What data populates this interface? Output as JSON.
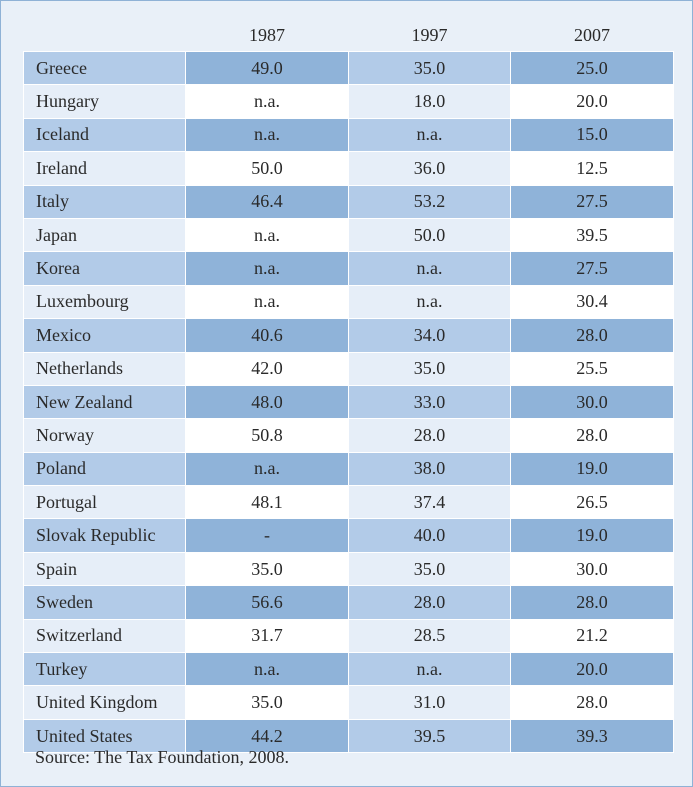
{
  "table": {
    "headers": [
      "",
      "1987",
      "1997",
      "2007"
    ],
    "rows": [
      {
        "country": "Greece",
        "y1987": "49.0",
        "y1997": "35.0",
        "y2007": "25.0"
      },
      {
        "country": "Hungary",
        "y1987": "n.a.",
        "y1997": "18.0",
        "y2007": "20.0"
      },
      {
        "country": "Iceland",
        "y1987": "n.a.",
        "y1997": "n.a.",
        "y2007": "15.0"
      },
      {
        "country": "Ireland",
        "y1987": "50.0",
        "y1997": "36.0",
        "y2007": "12.5"
      },
      {
        "country": "Italy",
        "y1987": "46.4",
        "y1997": "53.2",
        "y2007": "27.5"
      },
      {
        "country": "Japan",
        "y1987": "n.a.",
        "y1997": "50.0",
        "y2007": "39.5"
      },
      {
        "country": "Korea",
        "y1987": "n.a.",
        "y1997": "n.a.",
        "y2007": "27.5"
      },
      {
        "country": "Luxembourg",
        "y1987": "n.a.",
        "y1997": "n.a.",
        "y2007": "30.4"
      },
      {
        "country": "Mexico",
        "y1987": "40.6",
        "y1997": "34.0",
        "y2007": "28.0"
      },
      {
        "country": "Netherlands",
        "y1987": "42.0",
        "y1997": "35.0",
        "y2007": "25.5"
      },
      {
        "country": "New Zealand",
        "y1987": "48.0",
        "y1997": "33.0",
        "y2007": "30.0"
      },
      {
        "country": "Norway",
        "y1987": "50.8",
        "y1997": "28.0",
        "y2007": "28.0"
      },
      {
        "country": "Poland",
        "y1987": "n.a.",
        "y1997": "38.0",
        "y2007": "19.0"
      },
      {
        "country": "Portugal",
        "y1987": "48.1",
        "y1997": "37.4",
        "y2007": "26.5"
      },
      {
        "country": "Slovak Republic",
        "y1987": "-",
        "y1997": "40.0",
        "y2007": "19.0"
      },
      {
        "country": "Spain",
        "y1987": "35.0",
        "y1997": "35.0",
        "y2007": "30.0"
      },
      {
        "country": "Sweden",
        "y1987": "56.6",
        "y1997": "28.0",
        "y2007": "28.0"
      },
      {
        "country": "Switzerland",
        "y1987": "31.7",
        "y1997": "28.5",
        "y2007": "21.2"
      },
      {
        "country": "Turkey",
        "y1987": "n.a.",
        "y1997": "n.a.",
        "y2007": "20.0"
      },
      {
        "country": "United Kingdom",
        "y1987": "35.0",
        "y1997": "31.0",
        "y2007": "28.0"
      },
      {
        "country": "United States",
        "y1987": "44.2",
        "y1997": "39.5",
        "y2007": "39.3"
      }
    ]
  },
  "source": "Source: The Tax Foundation, 2008."
}
